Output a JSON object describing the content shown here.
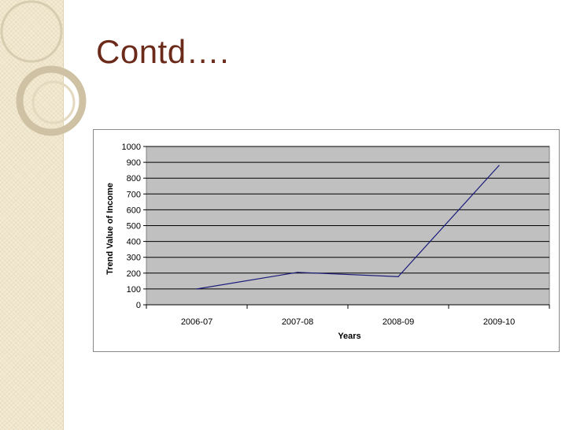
{
  "slide": {
    "title": "Contd…."
  },
  "colors": {
    "title": "#6b2a1a",
    "plot_bg": "#c0c0c0",
    "line": "#1a1a7a",
    "strip": "#f3ead3"
  },
  "chart_data": {
    "type": "line",
    "categories": [
      "2006-07",
      "2007-08",
      "2008-09",
      "2009-10"
    ],
    "series": [
      {
        "values": [
          100,
          205,
          178,
          880
        ]
      }
    ],
    "xlabel": "Years",
    "ylabel": "Trend Value of Income",
    "ylim": [
      0,
      1000
    ],
    "yticks": [
      0,
      100,
      200,
      300,
      400,
      500,
      600,
      700,
      800,
      900,
      1000
    ],
    "grid": true,
    "legend": "none"
  }
}
